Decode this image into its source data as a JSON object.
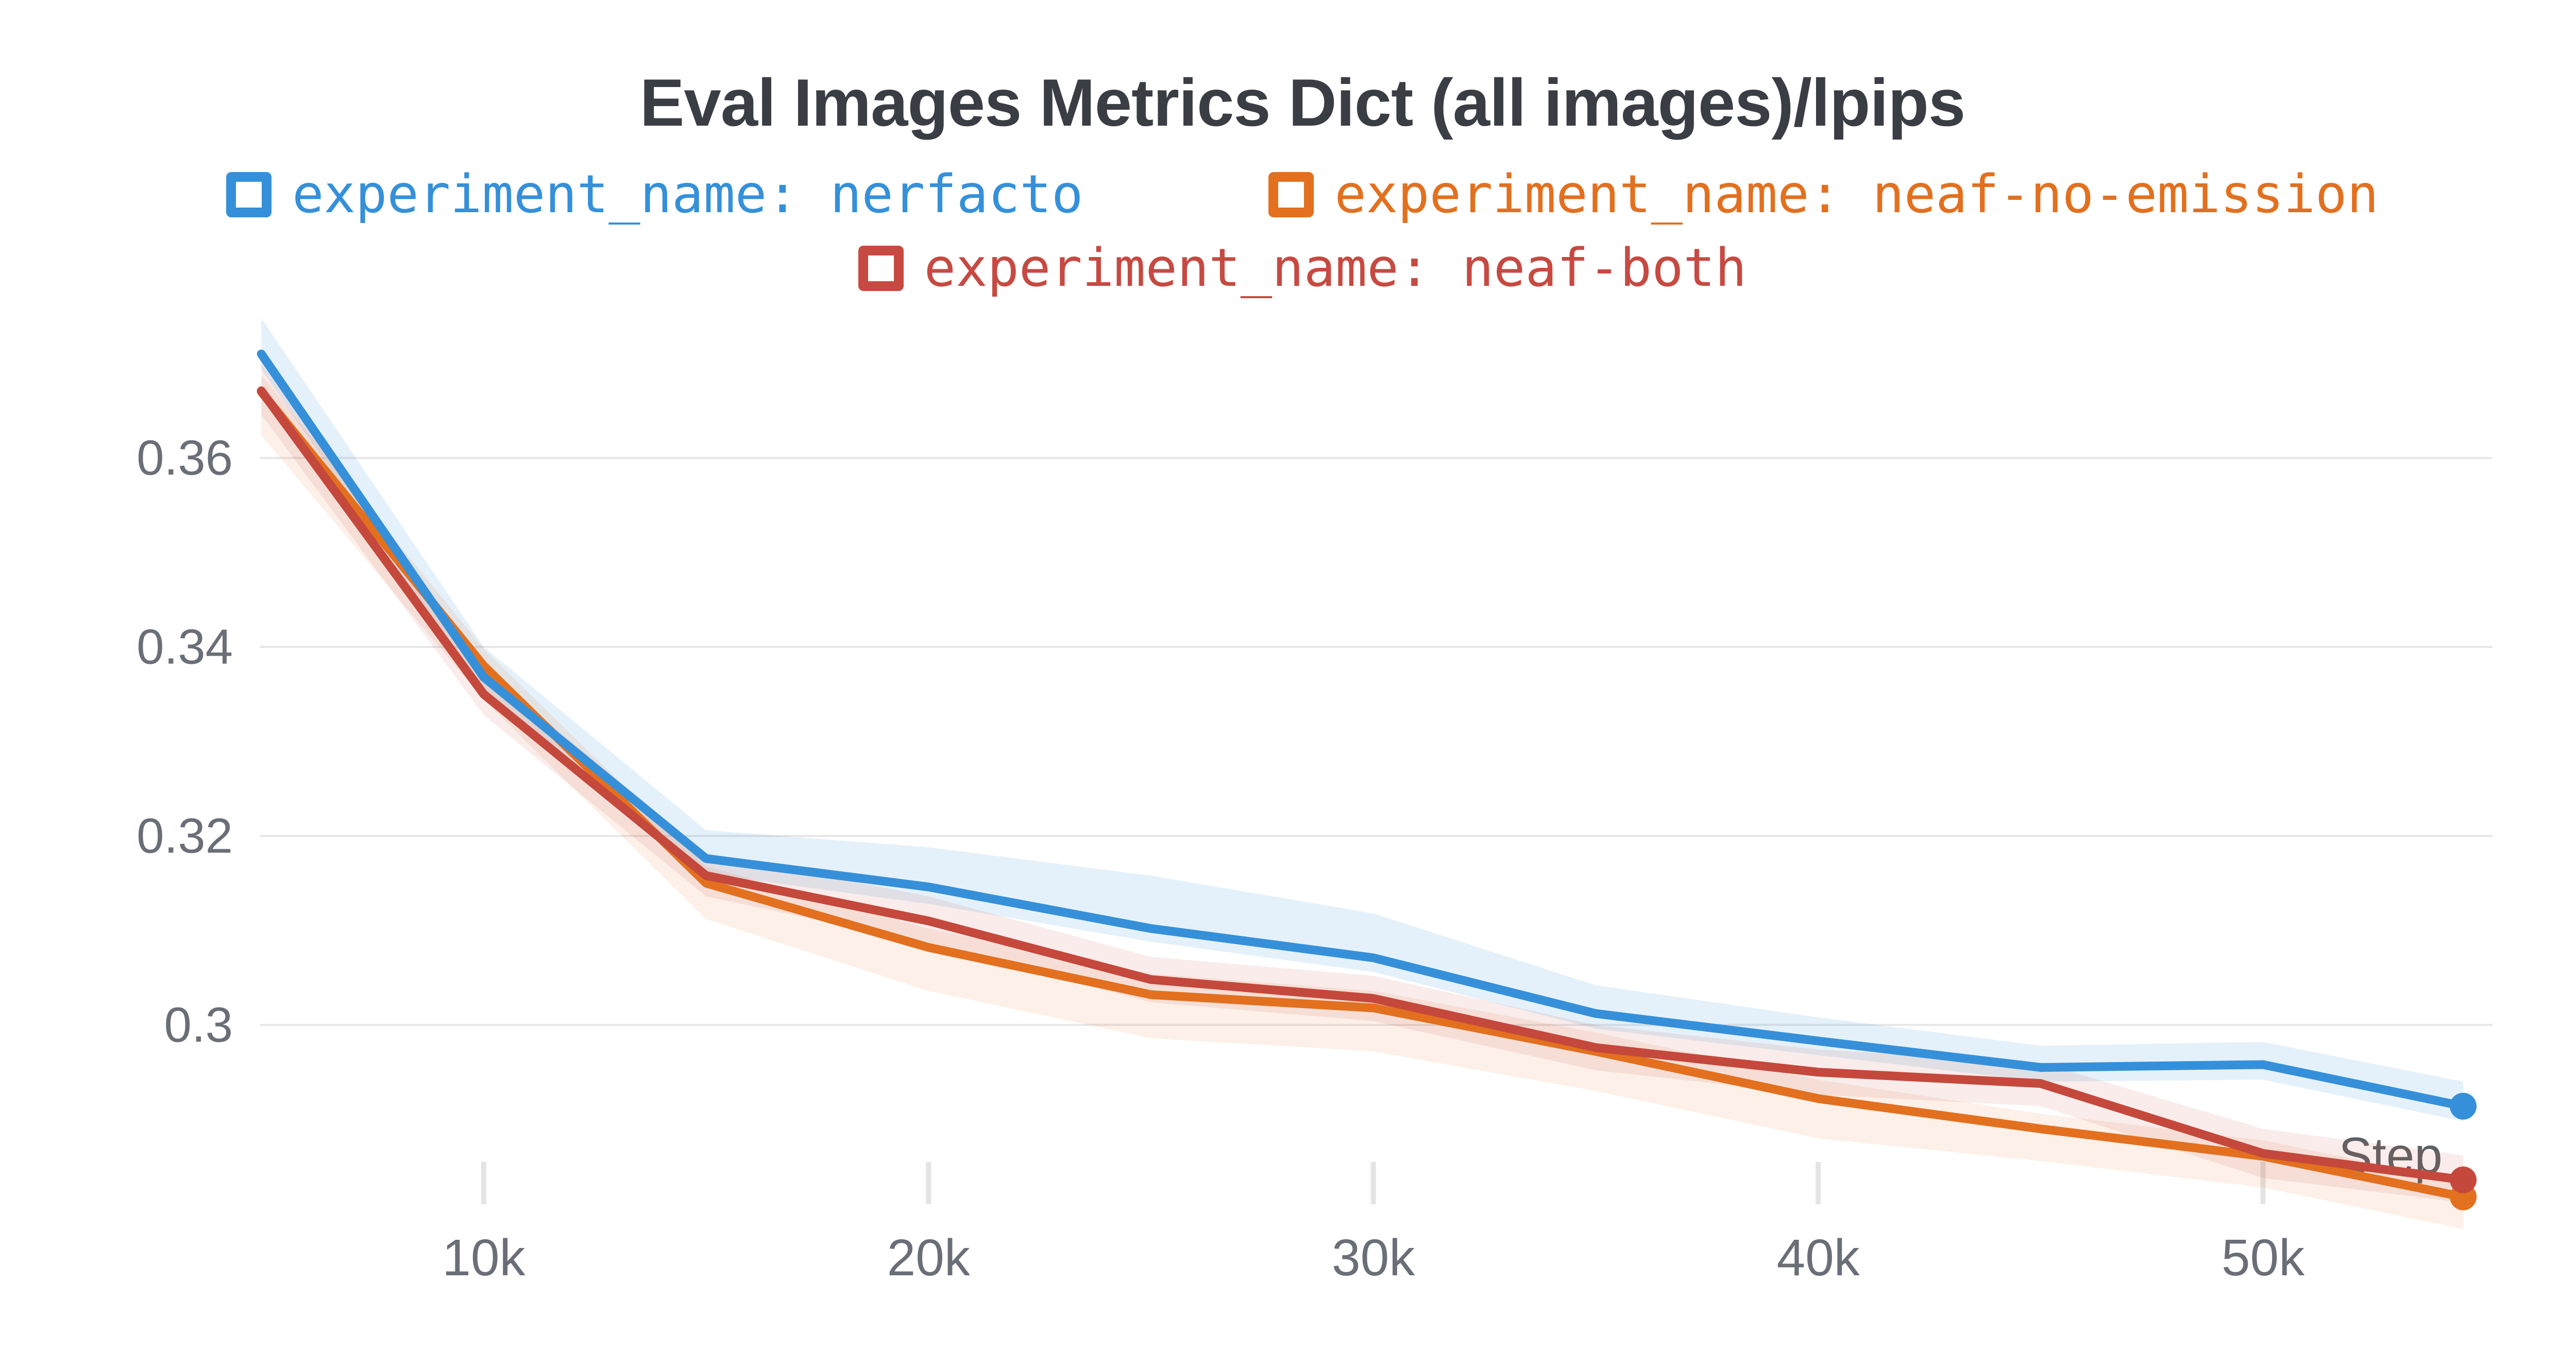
{
  "page": {
    "background": "#ffffff"
  },
  "legend": {
    "items": [
      {
        "label": "experiment_name: nerfacto",
        "color": "#3590d9"
      },
      {
        "label": "experiment_name: neaf-no-emission",
        "color": "#e2701f"
      },
      {
        "label": "experiment_name: neaf-both",
        "color": "#c64a42"
      }
    ]
  },
  "chart_data": {
    "type": "line",
    "title": "Eval Images Metrics Dict (all images)/lpips",
    "title_color": "#3a3e44",
    "xlabel": "Step",
    "ylabel": "",
    "xlabel_color": "#5e6266",
    "axis_tick_color": "#6a6e77",
    "grid_color": "#e7e7e7",
    "tick_mark_color": "#e4e4e4",
    "grid": "horizontal-only",
    "legend_position": "top-center",
    "x": [
      5000,
      10000,
      15000,
      20000,
      25000,
      30000,
      35000,
      40000,
      45000,
      50000,
      54500
    ],
    "x_ticks": [
      {
        "value": 10000,
        "label": "10k"
      },
      {
        "value": 20000,
        "label": "20k"
      },
      {
        "value": 30000,
        "label": "30k"
      },
      {
        "value": 40000,
        "label": "40k"
      },
      {
        "value": 50000,
        "label": "50k"
      }
    ],
    "y_ticks": [
      {
        "value": 0.3,
        "label": "0.3"
      },
      {
        "value": 0.32,
        "label": "0.32"
      },
      {
        "value": 0.34,
        "label": "0.34"
      },
      {
        "value": 0.36,
        "label": "0.36"
      }
    ],
    "xlim": [
      4975,
      55160
    ],
    "ylim": [
      0.2795,
      0.3775
    ],
    "series": [
      {
        "name": "experiment_name: nerfacto",
        "color": "#3590d9",
        "band_opacity": 0.13,
        "values": [
          0.371,
          0.3368,
          0.3176,
          0.3146,
          0.3102,
          0.3071,
          0.3012,
          0.2983,
          0.2955,
          0.2958,
          0.2914
        ],
        "band_upper": [
          0.3748,
          0.34,
          0.3206,
          0.3188,
          0.3158,
          0.3118,
          0.3042,
          0.3008,
          0.2978,
          0.2982,
          0.294
        ],
        "band_lower": [
          0.3694,
          0.335,
          0.316,
          0.3128,
          0.3088,
          0.3056,
          0.2996,
          0.2968,
          0.294,
          0.2942,
          0.2898
        ]
      },
      {
        "name": "experiment_name: neaf-no-emission",
        "color": "#e2701f",
        "band_opacity": 0.1,
        "values": [
          0.367,
          0.338,
          0.315,
          0.3082,
          0.3032,
          0.3018,
          0.2972,
          0.2922,
          0.289,
          0.2861,
          0.2818
        ],
        "band_upper": [
          0.3688,
          0.3398,
          0.3168,
          0.3102,
          0.3054,
          0.3036,
          0.2992,
          0.2942,
          0.2906,
          0.2878,
          0.2834
        ],
        "band_lower": [
          0.3624,
          0.3344,
          0.3112,
          0.3036,
          0.2986,
          0.2972,
          0.293,
          0.288,
          0.2856,
          0.2828,
          0.2784
        ]
      },
      {
        "name": "experiment_name: neaf-both",
        "color": "#c5483c",
        "band_opacity": 0.1,
        "values": [
          0.3671,
          0.335,
          0.3158,
          0.311,
          0.3048,
          0.3028,
          0.2976,
          0.295,
          0.2938,
          0.2864,
          0.2836
        ],
        "band_upper": [
          0.37,
          0.3376,
          0.3182,
          0.3136,
          0.3072,
          0.3052,
          0.3,
          0.2974,
          0.296,
          0.289,
          0.2862
        ],
        "band_lower": [
          0.3646,
          0.3328,
          0.3136,
          0.3086,
          0.3024,
          0.3004,
          0.2952,
          0.2926,
          0.2914,
          0.2838,
          0.2812
        ]
      }
    ]
  }
}
